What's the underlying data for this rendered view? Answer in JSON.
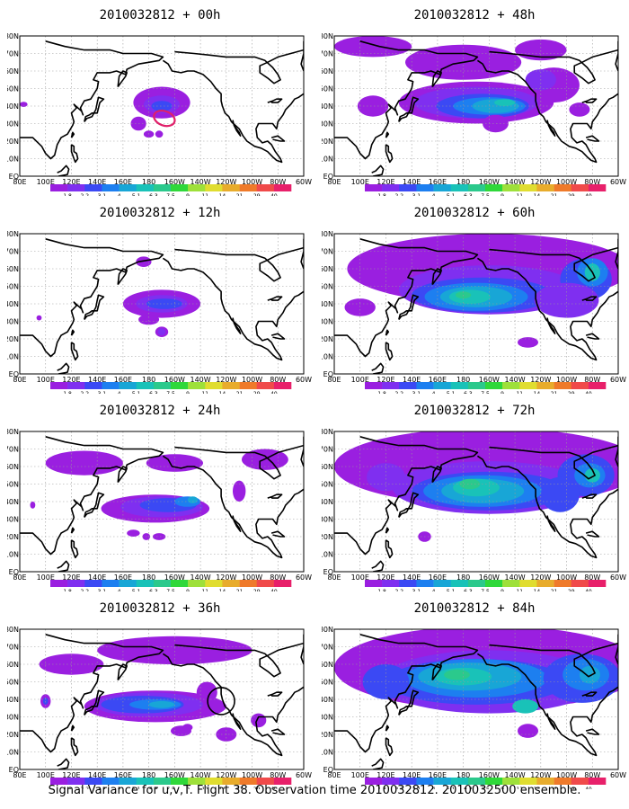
{
  "caption": "Signal Variance for u,v,T. Flight 38. Observation time 2010032812. 2010032500 ensemble.",
  "colorbar": {
    "labels": [
      "1.8",
      "2.2",
      "3.1",
      "4",
      "5.1",
      "6.3",
      "7.5",
      "9",
      "11",
      "14",
      "21",
      "29",
      "40"
    ],
    "colors": [
      "#9a1fe0",
      "#7f2ff0",
      "#3b49f4",
      "#1d7ff0",
      "#18a6d6",
      "#19c2b8",
      "#2bc98c",
      "#2fd83a",
      "#9ee03a",
      "#e0dd30",
      "#e8ac2c",
      "#ef7a2a",
      "#f04a4a",
      "#e8206a"
    ]
  },
  "axes": {
    "lat_labels": [
      "EQ",
      "10N",
      "20N",
      "30N",
      "40N",
      "50N",
      "60N",
      "70N",
      "80N"
    ],
    "lon_labels": [
      "80E",
      "100E",
      "120E",
      "140E",
      "160E",
      "180",
      "160W",
      "140W",
      "120W",
      "100W",
      "80W",
      "60W"
    ]
  },
  "chart_data": {
    "type": "heatmap",
    "title": "Signal Variance for u,v,T. Flight 38. Observation time 2010032812. 2010032500 ensemble.",
    "xlim": [
      "80E",
      "60W"
    ],
    "ylim": [
      "EQ",
      "80N"
    ],
    "grid": true,
    "contour_levels": [
      1.8,
      2.2,
      3.1,
      4,
      5.1,
      6.3,
      7.5,
      9,
      11,
      14,
      21,
      29,
      40
    ],
    "panels": [
      {
        "title": "2010032812 + 00h",
        "lead_hours": 0,
        "max_level": 5.1,
        "extent": "small, central North Pacific near 180"
      },
      {
        "title": "2010032812 + 12h",
        "lead_hours": 12,
        "max_level": 4,
        "extent": "central North Pacific band"
      },
      {
        "title": "2010032812 + 24h",
        "lead_hours": 24,
        "max_level": 6.3,
        "extent": "band 140E to 120W"
      },
      {
        "title": "2010032812 + 36h",
        "lead_hours": 36,
        "max_level": 7.5,
        "extent": "band 120E to 110W"
      },
      {
        "title": "2010032812 + 48h",
        "lead_hours": 48,
        "max_level": 7.5,
        "extent": "wide mid-latitude band"
      },
      {
        "title": "2010032812 + 60h",
        "lead_hours": 60,
        "max_level": 9,
        "extent": "most of North Pacific and North America"
      },
      {
        "title": "2010032812 + 72h",
        "lead_hours": 72,
        "max_level": 9,
        "extent": "Northern Hemisphere mid-latitudes"
      },
      {
        "title": "2010032812 + 84h",
        "lead_hours": 84,
        "max_level": 11,
        "extent": "Northern Hemisphere mid-latitudes"
      }
    ]
  }
}
